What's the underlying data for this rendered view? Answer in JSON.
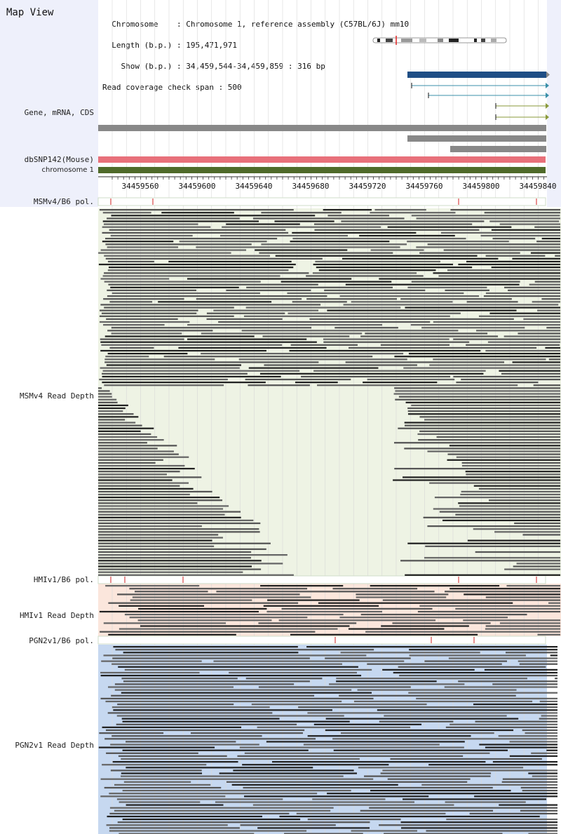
{
  "header": {
    "title": "Map View",
    "info_lines": [
      "  Chromosome    : Chromosome 1, reference assembly (C57BL/6J) mm10",
      "  Length (b.p.) : 195,471,971",
      "    Show (b.p.) : 34,459,544-34,459,859 : 316 bp",
      "Read coverage check span : 500"
    ]
  },
  "tracks": {
    "gene_label": "Gene, mRNA, CDS",
    "snp_label": "dbSNP142(Mouse)",
    "chrom_label": "chromosome 1"
  },
  "axis": {
    "ticks": [
      "34459560",
      "34459600",
      "34459640",
      "34459680",
      "34459720",
      "34459760",
      "34459800",
      "34459840"
    ]
  },
  "sections": [
    {
      "pol_label": "MSMv4/B6 pol.",
      "depth_label": "MSMv4 Read Depth"
    },
    {
      "pol_label": "HMIv1/B6 pol.",
      "depth_label": "HMIv1 Read Depth"
    },
    {
      "pol_label": "PGN2v1/B6 pol.",
      "depth_label": "PGN2v1 Read Depth"
    }
  ],
  "colors": {
    "gene_blue": "#1f4e85",
    "mrna_teal": "#3a8fa8",
    "cds_olive": "#8a9a3a",
    "gray_bar": "#888888",
    "snp_pink": "#e8707a",
    "chrom_green": "#4f6a2a",
    "msm_bg": "#eef3e4",
    "hmi_bg": "#fbe6dc",
    "pgn_bg": "#c6d8f0",
    "read_dark": "#555555"
  }
}
